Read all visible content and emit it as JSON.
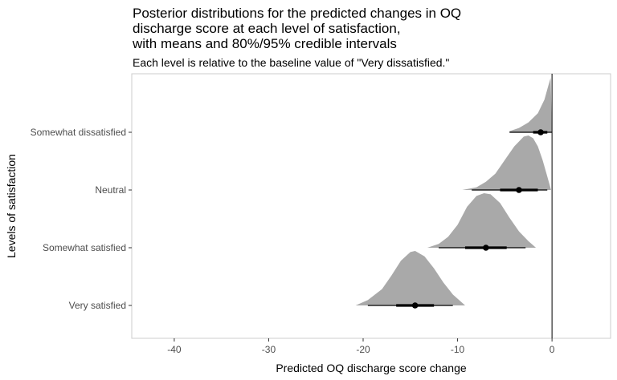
{
  "chart_data": {
    "type": "halfeye",
    "title_lines": [
      "Posterior distributions for the predicted changes in OQ",
      "discharge score at each level of satisfaction,",
      "with means and 80%/95% credible intervals"
    ],
    "subtitle": "Each level is relative to the baseline value of \"Very dissatisfied.\"",
    "xlabel": "Predicted OQ discharge score change",
    "ylabel": "Levels of satisfaction",
    "xlim": [
      -44.5,
      6.2
    ],
    "x_ticks": [
      -40,
      -30,
      -20,
      -10,
      0
    ],
    "x_tick_labels": [
      "-40",
      "-30",
      "-20",
      "-10",
      "0"
    ],
    "reference_line_x": 0,
    "grid": false,
    "categories": [
      "Somewhat dissatisfied",
      "Neutral",
      "Somewhat satisfied",
      "Very satisfied"
    ],
    "series": [
      {
        "category": "Somewhat dissatisfied",
        "mean": -1.2,
        "ci80": [
          -2.0,
          -0.5
        ],
        "ci95": [
          -4.5,
          0.0
        ],
        "density": [
          [
            -4.5,
            0.02
          ],
          [
            -3.5,
            0.08
          ],
          [
            -2.5,
            0.18
          ],
          [
            -1.5,
            0.35
          ],
          [
            -0.8,
            0.6
          ],
          [
            -0.4,
            0.85
          ],
          [
            -0.15,
            1.0
          ],
          [
            0.0,
            0.0
          ]
        ]
      },
      {
        "category": "Neutral",
        "mean": -3.5,
        "ci80": [
          -5.5,
          -1.5
        ],
        "ci95": [
          -8.5,
          -0.5
        ],
        "density": [
          [
            -9.5,
            0.0
          ],
          [
            -8.0,
            0.05
          ],
          [
            -7.0,
            0.15
          ],
          [
            -6.0,
            0.3
          ],
          [
            -5.0,
            0.55
          ],
          [
            -4.0,
            0.8
          ],
          [
            -3.0,
            0.98
          ],
          [
            -2.5,
            1.0
          ],
          [
            -2.0,
            0.95
          ],
          [
            -1.5,
            0.8
          ],
          [
            -1.0,
            0.55
          ],
          [
            -0.5,
            0.25
          ],
          [
            -0.1,
            0.0
          ]
        ]
      },
      {
        "category": "Somewhat satisfied",
        "mean": -7.0,
        "ci80": [
          -9.2,
          -4.8
        ],
        "ci95": [
          -12.0,
          -2.8
        ],
        "density": [
          [
            -13.2,
            0.0
          ],
          [
            -12.0,
            0.07
          ],
          [
            -11.0,
            0.2
          ],
          [
            -10.0,
            0.42
          ],
          [
            -9.0,
            0.75
          ],
          [
            -8.0,
            0.95
          ],
          [
            -7.2,
            1.0
          ],
          [
            -6.5,
            0.98
          ],
          [
            -5.5,
            0.82
          ],
          [
            -4.5,
            0.55
          ],
          [
            -3.5,
            0.3
          ],
          [
            -2.5,
            0.12
          ],
          [
            -1.7,
            0.0
          ]
        ]
      },
      {
        "category": "Very satisfied",
        "mean": -14.5,
        "ci80": [
          -16.5,
          -12.5
        ],
        "ci95": [
          -19.5,
          -10.5
        ],
        "density": [
          [
            -20.8,
            0.0
          ],
          [
            -19.5,
            0.1
          ],
          [
            -18.0,
            0.3
          ],
          [
            -17.0,
            0.55
          ],
          [
            -16.0,
            0.82
          ],
          [
            -15.0,
            0.98
          ],
          [
            -14.5,
            1.0
          ],
          [
            -13.5,
            0.9
          ],
          [
            -12.5,
            0.68
          ],
          [
            -11.5,
            0.42
          ],
          [
            -10.5,
            0.2
          ],
          [
            -9.2,
            0.0
          ]
        ]
      }
    ],
    "colors": {
      "density_fill": "#a9a9a9",
      "interval": "#000000",
      "panel_border": "#cccccc",
      "tick_text": "#4d4d4d"
    }
  }
}
